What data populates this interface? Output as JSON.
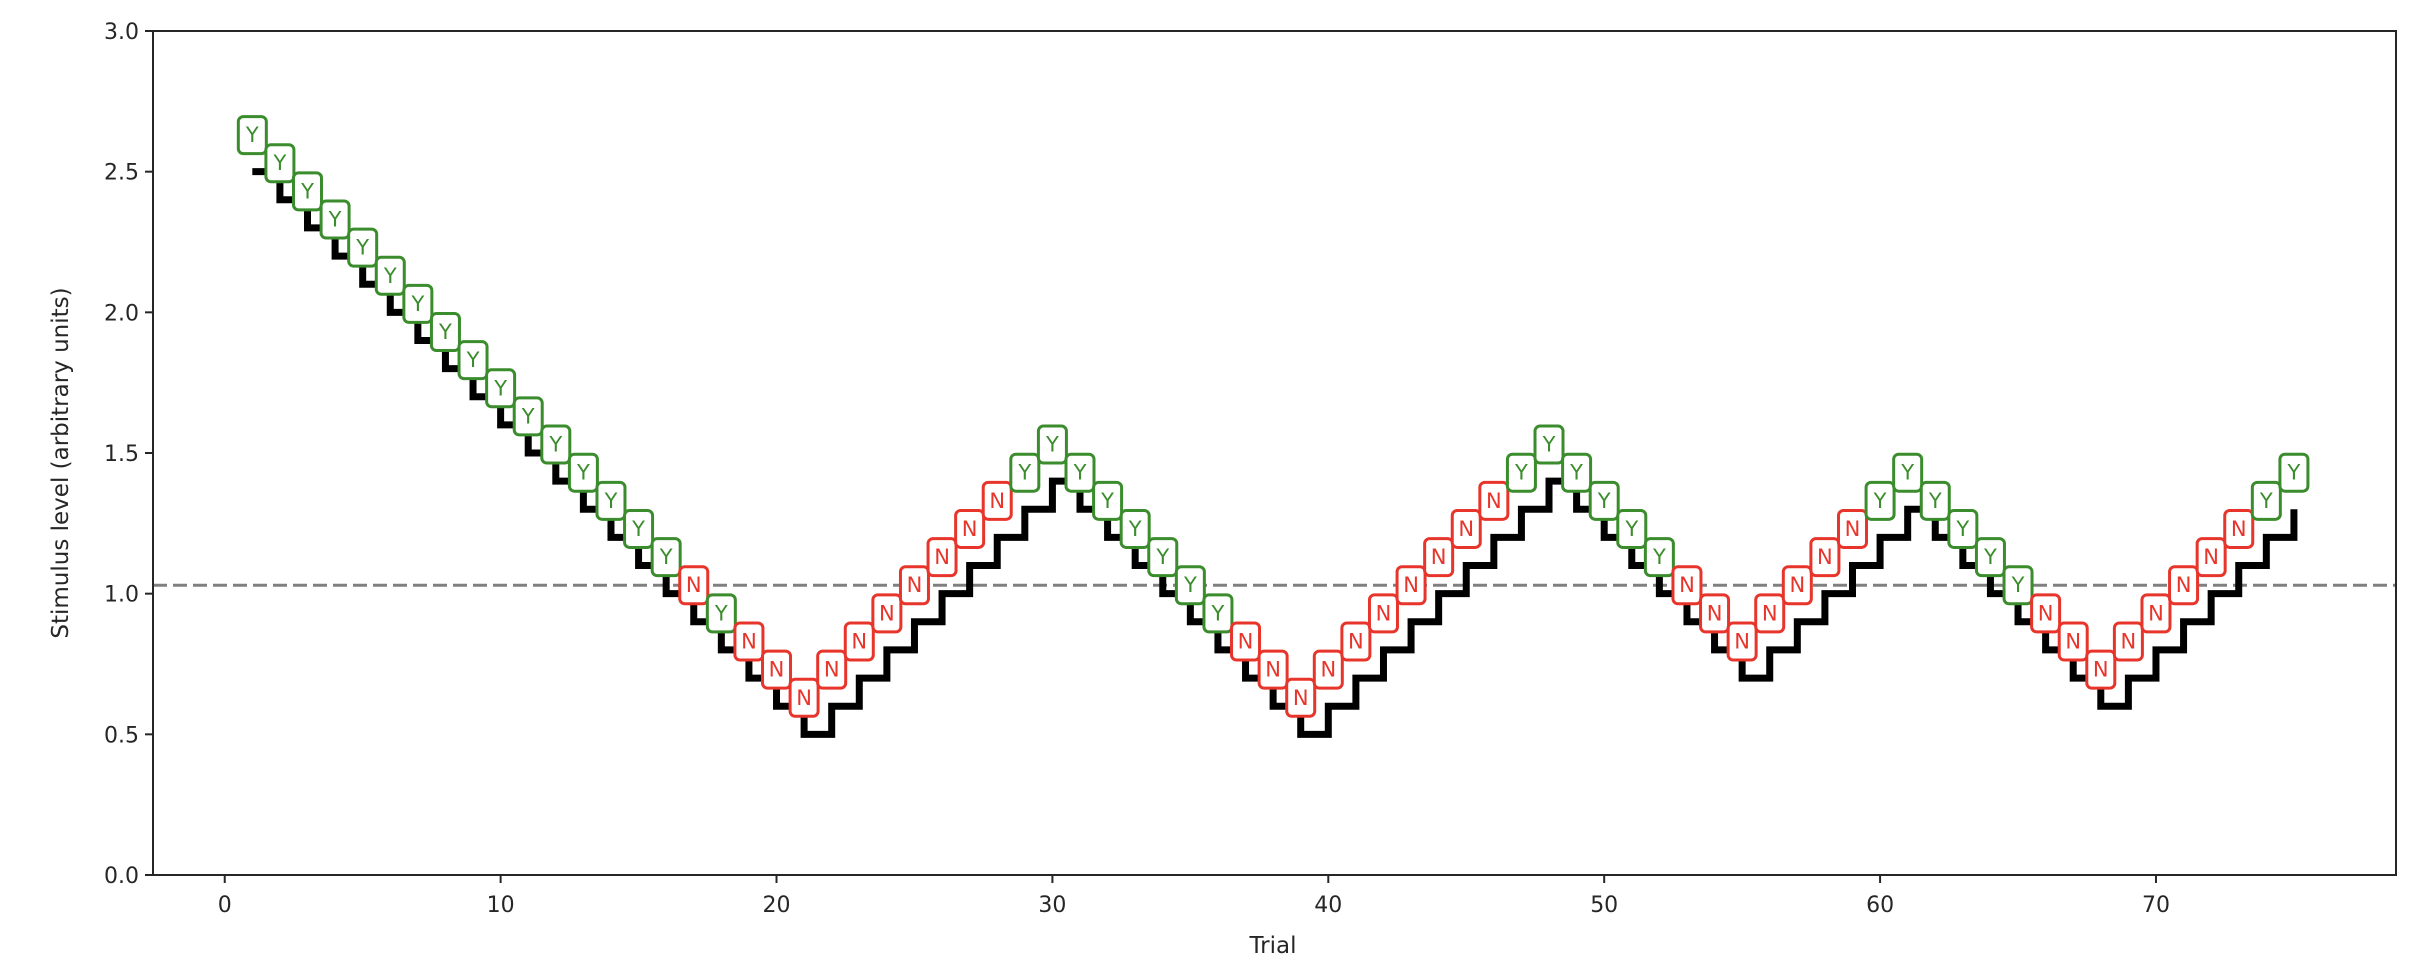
{
  "chart_data": {
    "type": "line",
    "title": "",
    "xlabel": "Trial",
    "ylabel": "Stimulus level (arbitrary units)",
    "xlim": [
      -2.6,
      78.7
    ],
    "ylim": [
      0.0,
      3.0
    ],
    "grid": false,
    "legend": null,
    "x_ticks": [
      0,
      10,
      20,
      30,
      40,
      50,
      60,
      70
    ],
    "x_tick_labels": [
      "0",
      "10",
      "20",
      "30",
      "40",
      "50",
      "60",
      "70"
    ],
    "y_ticks": [
      0.0,
      0.5,
      1.0,
      1.5,
      2.0,
      2.5,
      3.0
    ],
    "y_tick_labels": [
      "0.0",
      "0.5",
      "1.0",
      "1.5",
      "2.0",
      "2.5",
      "3.0"
    ],
    "threshold": {
      "value": 1.03,
      "style": "dashed",
      "color": "#808080"
    },
    "series": [
      {
        "name": "Stimulus level",
        "drawstyle": "steps-post",
        "color": "#000000",
        "x": [
          1,
          2,
          3,
          4,
          5,
          6,
          7,
          8,
          9,
          10,
          11,
          12,
          13,
          14,
          15,
          16,
          17,
          18,
          19,
          20,
          21,
          22,
          23,
          24,
          25,
          26,
          27,
          28,
          29,
          30,
          31,
          32,
          33,
          34,
          35,
          36,
          37,
          38,
          39,
          40,
          41,
          42,
          43,
          44,
          45,
          46,
          47,
          48,
          49,
          50,
          51,
          52,
          53,
          54,
          55,
          56,
          57,
          58,
          59,
          60,
          61,
          62,
          63,
          64,
          65,
          66,
          67,
          68,
          69,
          70,
          71,
          72,
          73,
          74,
          75
        ],
        "values": [
          2.5,
          2.4,
          2.3,
          2.2,
          2.1,
          2.0,
          1.9,
          1.8,
          1.7,
          1.6,
          1.5,
          1.4,
          1.3,
          1.2,
          1.1,
          1.0,
          0.9,
          0.8,
          0.7,
          0.6,
          0.5,
          0.6,
          0.7,
          0.8,
          0.9,
          1.0,
          1.1,
          1.2,
          1.3,
          1.4,
          1.3,
          1.2,
          1.1,
          1.0,
          0.9,
          0.8,
          0.7,
          0.6,
          0.5,
          0.6,
          0.7,
          0.8,
          0.9,
          1.0,
          1.1,
          1.2,
          1.3,
          1.4,
          1.3,
          1.2,
          1.1,
          1.0,
          0.9,
          0.8,
          0.7,
          0.8,
          0.9,
          1.0,
          1.1,
          1.2,
          1.3,
          1.2,
          1.1,
          1.0,
          0.9,
          0.8,
          0.7,
          0.6,
          0.7,
          0.8,
          0.9,
          1.0,
          1.1,
          1.2,
          1.3
        ]
      }
    ],
    "responses": [
      "Y",
      "Y",
      "Y",
      "Y",
      "Y",
      "Y",
      "Y",
      "Y",
      "Y",
      "Y",
      "Y",
      "Y",
      "Y",
      "Y",
      "Y",
      "Y",
      "N",
      "Y",
      "N",
      "N",
      "N",
      "N",
      "N",
      "N",
      "N",
      "N",
      "N",
      "N",
      "Y",
      "Y",
      "Y",
      "Y",
      "Y",
      "Y",
      "Y",
      "Y",
      "N",
      "N",
      "N",
      "N",
      "N",
      "N",
      "N",
      "N",
      "N",
      "N",
      "Y",
      "Y",
      "Y",
      "Y",
      "Y",
      "Y",
      "N",
      "N",
      "N",
      "N",
      "N",
      "N",
      "N",
      "Y",
      "Y",
      "Y",
      "Y",
      "Y",
      "Y",
      "N",
      "N",
      "N",
      "N",
      "N",
      "N",
      "N",
      "N",
      "Y",
      "Y"
    ],
    "response_colors": {
      "Y": "#3a8c2c",
      "N": "#e8352b"
    },
    "marker_offset": 0.13
  }
}
